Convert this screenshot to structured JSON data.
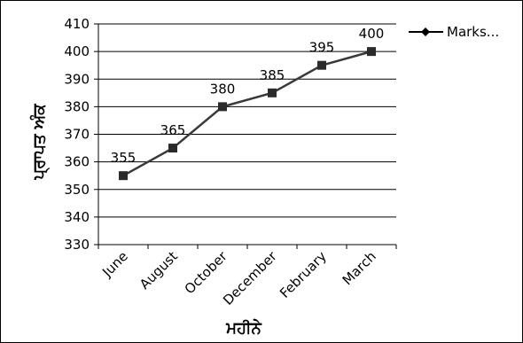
{
  "chart_data": {
    "type": "line",
    "categories": [
      "June",
      "August",
      "October",
      "December",
      "February",
      "March"
    ],
    "series": [
      {
        "name": "Marks...",
        "values": [
          355,
          365,
          380,
          385,
          395,
          400
        ]
      }
    ],
    "xlabel": "ਮਹੀਨੇ",
    "ylabel": "ਪ੍ਰਾਪਤ ਅੰਕ",
    "ylim": [
      330,
      410
    ],
    "yticks": [
      330,
      340,
      350,
      360,
      370,
      380,
      390,
      400,
      410
    ],
    "grid": "horizontal",
    "legend": "top-right",
    "data_labels": true,
    "colors": {
      "line": "#3a3a3a",
      "marker": "#2b2b2b",
      "grid": "#000000"
    }
  }
}
